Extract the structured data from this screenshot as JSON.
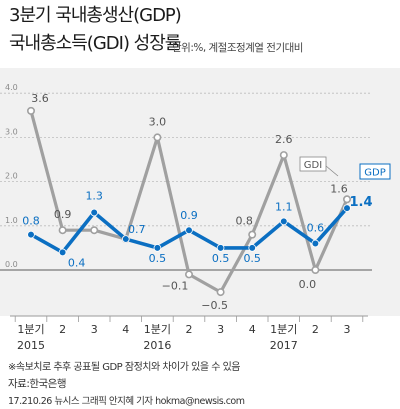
{
  "header": {
    "title_line1": "3분기 국내총생산(GDP)",
    "title_line2": "국내총소득(GDI) 성장률",
    "unit": "단위:%, 계절조정계열 전기대비"
  },
  "chart_data": {
    "type": "line",
    "categories": [
      "1분기",
      "2",
      "3",
      "4",
      "1분기",
      "2",
      "3",
      "4",
      "1분기",
      "2",
      "3"
    ],
    "year_labels": [
      {
        "label": "2015",
        "index": 0
      },
      {
        "label": "2016",
        "index": 4
      },
      {
        "label": "2017",
        "index": 8
      }
    ],
    "series": [
      {
        "name": "GDI",
        "color": "#a0a0a0",
        "values": [
          3.6,
          0.9,
          0.9,
          0.7,
          3.0,
          -0.1,
          -0.5,
          0.8,
          2.6,
          0.0,
          1.6
        ]
      },
      {
        "name": "GDP",
        "color": "#0b6fc2",
        "values": [
          0.8,
          0.4,
          1.3,
          0.7,
          0.5,
          0.9,
          0.5,
          0.5,
          1.1,
          0.6,
          1.4
        ]
      }
    ],
    "ylim": [
      -0.8,
      4.0
    ],
    "y_ticks": [
      "4.0",
      "3.0",
      "2.0",
      "1.0",
      "0.0"
    ],
    "y_tick_values": [
      4.0,
      3.0,
      2.0,
      1.0,
      0.0
    ],
    "grid": true,
    "title": "",
    "xlabel": "",
    "ylabel": ""
  },
  "footer": {
    "note": "※속보치로 추후 공표될 GDP 잠정치와 차이가 있을 수 있음",
    "source": "자료:한국은행",
    "credit": "17.210.26 뉴시스 그래픽 안지혜 기자 hokma@newsis.com"
  }
}
